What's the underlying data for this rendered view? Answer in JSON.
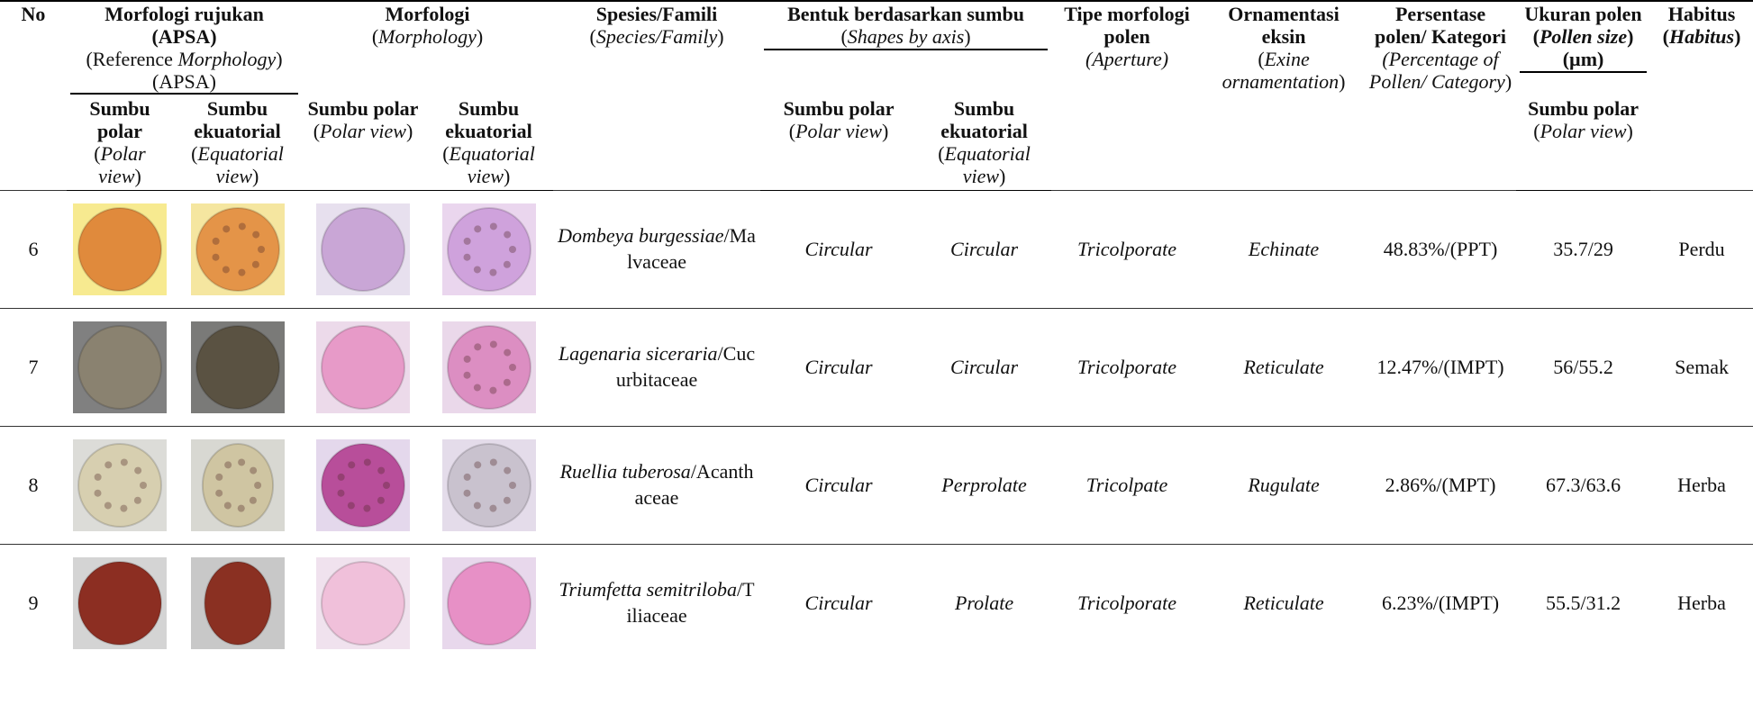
{
  "header": {
    "top": [
      {
        "segments": [
          {
            "text": "No",
            "style": "b"
          }
        ]
      },
      {
        "segments": [
          {
            "text": "Morfologi rujukan (APSA)",
            "style": "b"
          },
          {
            "text": "(Reference ",
            "style": "n"
          },
          {
            "text": "Morphology",
            "style": "i"
          },
          {
            "text": ") (APSA)",
            "style": "n"
          }
        ]
      },
      {
        "segments": [
          {
            "text": "Morfologi",
            "style": "b"
          },
          {
            "text": "(",
            "style": "n"
          },
          {
            "text": "Morphology",
            "style": "i"
          },
          {
            "text": ")",
            "style": "n"
          }
        ]
      },
      {
        "segments": [
          {
            "text": "Spesies/Famili",
            "style": "b"
          },
          {
            "text": "(",
            "style": "n"
          },
          {
            "text": "Species/Family",
            "style": "i"
          },
          {
            "text": ")",
            "style": "n"
          }
        ]
      },
      {
        "segments": [
          {
            "text": "Bentuk berdasarkan sumbu",
            "style": "b"
          },
          {
            "text": "(",
            "style": "n"
          },
          {
            "text": "Shapes by axis",
            "style": "i"
          },
          {
            "text": ")",
            "style": "n"
          }
        ]
      },
      {
        "segments": [
          {
            "text": "Tipe morfologi polen",
            "style": "b"
          },
          {
            "text": "(Aperture)",
            "style": "i"
          }
        ]
      },
      {
        "segments": [
          {
            "text": "Ornamentasi eksin",
            "style": "b"
          },
          {
            "text": "(",
            "style": "n"
          },
          {
            "text": "Exine ornamentation",
            "style": "i"
          },
          {
            "text": ")",
            "style": "n"
          }
        ]
      },
      {
        "segments": [
          {
            "text": "Persentase polen/ Kategori",
            "style": "b"
          },
          {
            "text": "(Percentage of Pollen/ Category",
            "style": "i"
          },
          {
            "text": ")",
            "style": "n"
          }
        ]
      },
      {
        "segments": [
          {
            "text": "Ukuran polen",
            "style": "b"
          },
          {
            "text": "(",
            "style": "bs"
          },
          {
            "text": "Pollen size",
            "style": "bi"
          },
          {
            "text": ")",
            "style": "bs"
          },
          {
            "text": "(µm)",
            "style": "b"
          }
        ]
      },
      {
        "segments": [
          {
            "text": "Habitus",
            "style": "b"
          },
          {
            "text": "(",
            "style": "bs"
          },
          {
            "text": "Habitus",
            "style": "bi"
          },
          {
            "text": ")",
            "style": "bs"
          }
        ]
      }
    ],
    "sub": [
      {
        "segments": [
          {
            "text": "Sumbu polar",
            "style": "b"
          },
          {
            "text": "(",
            "style": "n"
          },
          {
            "text": "Polar view",
            "style": "i"
          },
          {
            "text": ")",
            "style": "n"
          }
        ]
      },
      {
        "segments": [
          {
            "text": "Sumbu ekuatorial",
            "style": "b"
          },
          {
            "text": "(",
            "style": "n"
          },
          {
            "text": "Equatorial view",
            "style": "i"
          },
          {
            "text": ")",
            "style": "n"
          }
        ]
      },
      {
        "segments": [
          {
            "text": "Sumbu polar",
            "style": "b"
          },
          {
            "text": "(",
            "style": "n"
          },
          {
            "text": "Polar view",
            "style": "i"
          },
          {
            "text": ")",
            "style": "n"
          }
        ]
      },
      {
        "segments": [
          {
            "text": "Sumbu ekuatorial",
            "style": "b"
          },
          {
            "text": "(",
            "style": "n"
          },
          {
            "text": "Equatorial view",
            "style": "i"
          },
          {
            "text": ")",
            "style": "n"
          }
        ]
      },
      {
        "segments": [
          {
            "text": "Sumbu polar",
            "style": "b"
          },
          {
            "text": "(",
            "style": "n"
          },
          {
            "text": "Polar view",
            "style": "i"
          },
          {
            "text": ")",
            "style": "n"
          }
        ]
      },
      {
        "segments": [
          {
            "text": "Sumbu ekuatorial",
            "style": "b"
          },
          {
            "text": "(",
            "style": "n"
          },
          {
            "text": "Equatorial view",
            "style": "i"
          },
          {
            "text": ")",
            "style": "n"
          }
        ]
      },
      {
        "segments": [
          {
            "text": "Sumbu polar",
            "style": "b"
          },
          {
            "text": "(",
            "style": "n"
          },
          {
            "text": "Polar view",
            "style": "i"
          },
          {
            "text": ")",
            "style": "n"
          }
        ]
      }
    ]
  },
  "rows": [
    {
      "no": 6,
      "species": "Dombeya burgessiae",
      "family": "/Malvaceae",
      "polar_shape": "Circular",
      "equatorial_shape": "Circular",
      "aperture": "Tricolporate",
      "ornamentation": "Echinate",
      "percentage": "48.83%/(PPT)",
      "size": "35.7/29",
      "habitus": "Perdu"
    },
    {
      "no": 7,
      "species": "Lagenaria siceraria",
      "family": "/Cucurbitaceae",
      "polar_shape": "Circular",
      "equatorial_shape": "Circular",
      "aperture": "Tricolporate",
      "ornamentation": "Reticulate",
      "percentage": "12.47%/(IMPT)",
      "size": "56/55.2",
      "habitus": "Semak"
    },
    {
      "no": 8,
      "species": "Ruellia tuberosa",
      "family": "/Acanthaceae",
      "polar_shape": "Circular",
      "equatorial_shape": "Perprolate",
      "aperture": "Tricolpate",
      "ornamentation": "Rugulate",
      "percentage": "2.86%/(MPT)",
      "size": "67.3/63.6",
      "habitus": "Herba"
    },
    {
      "no": 9,
      "species": "Triumfetta semitriloba",
      "family": "/Tiliaceae",
      "polar_shape": "Circular",
      "equatorial_shape": "Prolate",
      "aperture": "Tricolporate",
      "ornamentation": "Reticulate",
      "percentage": "6.23%/(IMPT)",
      "size": "55.5/31.2",
      "habitus": "Herba"
    }
  ]
}
